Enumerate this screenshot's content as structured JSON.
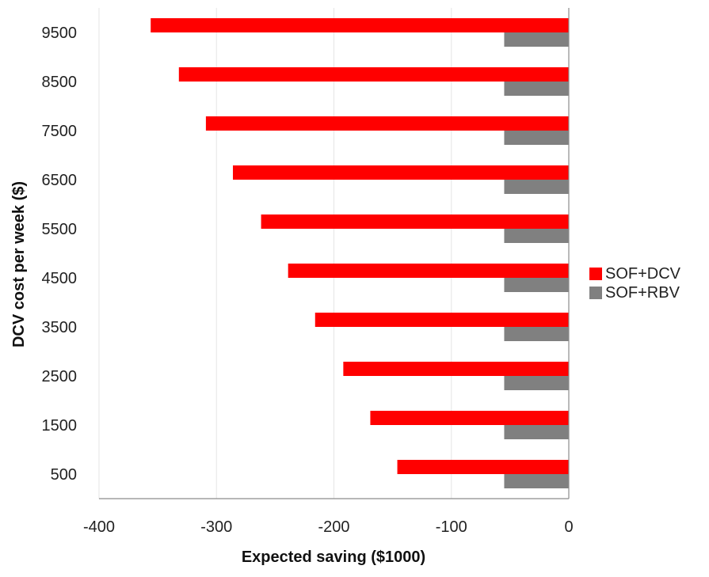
{
  "chart_data": {
    "type": "bar",
    "orientation": "horizontal",
    "categories": [
      "500",
      "1500",
      "2500",
      "3500",
      "4500",
      "5500",
      "6500",
      "7500",
      "8500",
      "9500"
    ],
    "series": [
      {
        "name": "SOF+DCV",
        "color": "#ff0000",
        "values": [
          -146,
          -169,
          -192,
          -216,
          -239,
          -262,
          -286,
          -309,
          -332,
          -356
        ]
      },
      {
        "name": "SOF+RBV",
        "color": "#808080",
        "values": [
          -55,
          -55,
          -55,
          -55,
          -55,
          -55,
          -55,
          -55,
          -55,
          -55
        ]
      }
    ],
    "xlabel": "Expected saving ($1000)",
    "ylabel": "DCV cost per week ($)",
    "xlim": [
      -400,
      0
    ],
    "xticks": [
      "-400",
      "-300",
      "-200",
      "-100",
      "0"
    ],
    "xtick_values": [
      -400,
      -300,
      -200,
      -100,
      0
    ],
    "grid": "vertical",
    "legend_position": "right"
  }
}
